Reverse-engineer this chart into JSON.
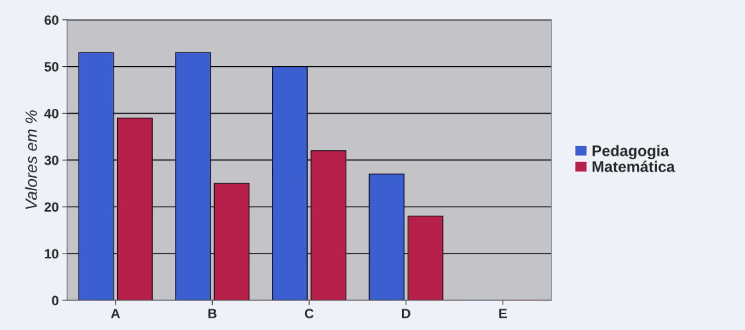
{
  "chart_data": {
    "type": "bar",
    "ylabel": "Valores em %",
    "categories": [
      "A",
      "B",
      "C",
      "D",
      "E"
    ],
    "series": [
      {
        "name": "Pedagogia",
        "color": "#3b5fd0",
        "values": [
          53,
          53,
          50,
          27,
          0
        ]
      },
      {
        "name": "Matemática",
        "color": "#b8204c",
        "values": [
          39,
          25,
          32,
          18,
          0
        ]
      }
    ],
    "ylim": [
      0,
      60
    ],
    "yticks": [
      0,
      10,
      20,
      30,
      40,
      50,
      60
    ],
    "grid": "y",
    "legend": "right"
  }
}
